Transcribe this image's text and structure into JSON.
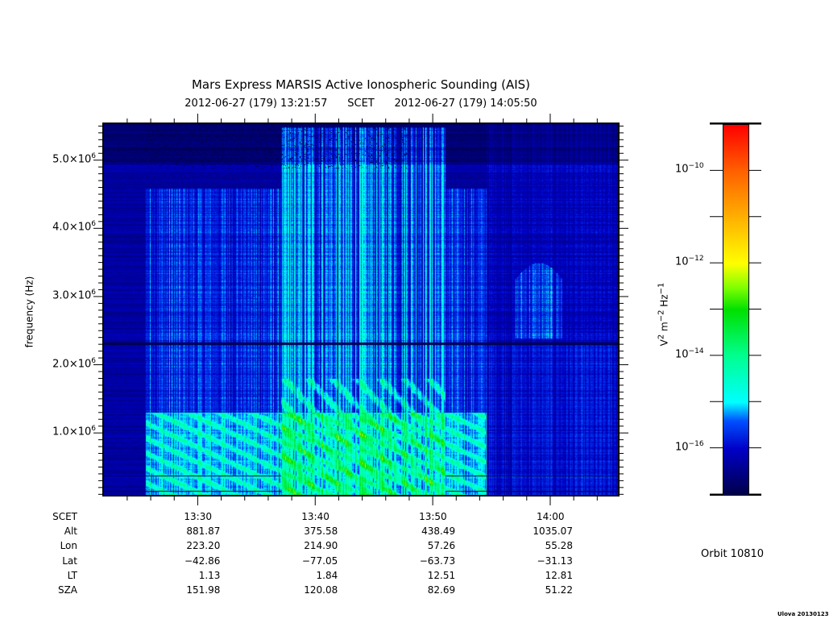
{
  "chart_data": {
    "type": "heatmap",
    "title": "Mars Express MARSIS Active Ionospheric Sounding (AIS)",
    "subtitle": {
      "start": "2012-06-27 (179) 13:21:57",
      "frame": "SCET",
      "end": "2012-06-27 (179) 14:05:50"
    },
    "ylabel": "frequency (Hz)",
    "ylim": [
      80000,
      5540000
    ],
    "yticks": [
      {
        "value": 1000000,
        "mant": "1.0×10",
        "exp": "6"
      },
      {
        "value": 2000000,
        "mant": "2.0×10",
        "exp": "6"
      },
      {
        "value": 3000000,
        "mant": "3.0×10",
        "exp": "6"
      },
      {
        "value": 4000000,
        "mant": "4.0×10",
        "exp": "6"
      },
      {
        "value": 5000000,
        "mant": "5.0×10",
        "exp": "6"
      }
    ],
    "xlim_minutes_after_1320": [
      1.95,
      45.83
    ],
    "xticks_minutes_after_1320": [
      10,
      20,
      30,
      40
    ],
    "colorbar": {
      "label_base": "V",
      "label_parts": [
        "2",
        "m",
        "−2",
        "Hz",
        "−1"
      ],
      "log10_range": [
        -17,
        -9
      ],
      "ticks": [
        {
          "value": -10,
          "text": "10",
          "exp": "−10"
        },
        {
          "value": -12,
          "text": "10",
          "exp": "−12"
        },
        {
          "value": -14,
          "text": "10",
          "exp": "−14"
        },
        {
          "value": -16,
          "text": "10",
          "exp": "−16"
        }
      ],
      "colors": [
        "#00004a",
        "#0000c8",
        "#00ffff",
        "#00e000",
        "#ffff00",
        "#ff6000",
        "#ff0000"
      ]
    },
    "features": {
      "background_log10": -16.3,
      "plasma_line_hz": 2320000,
      "active_sounding_minutes": [
        5.5,
        34.5
      ],
      "strong_echo_minutes": [
        17,
        31
      ]
    }
  },
  "ephemeris": {
    "labels": [
      "SCET",
      "Alt",
      "Lon",
      "Lat",
      "LT",
      "SZA"
    ],
    "columns": [
      [
        "13:30",
        "881.87",
        "223.20",
        "−42.86",
        "1.13",
        "151.98"
      ],
      [
        "13:40",
        "375.58",
        "214.90",
        "−77.05",
        "1.84",
        "120.08"
      ],
      [
        "13:50",
        "438.49",
        "57.26",
        "−63.73",
        "12.51",
        "82.69"
      ],
      [
        "14:00",
        "1035.07",
        "55.28",
        "−31.13",
        "12.81",
        "51.22"
      ]
    ]
  },
  "orbit": "Orbit 10810",
  "credit": "Ulova 20130123"
}
